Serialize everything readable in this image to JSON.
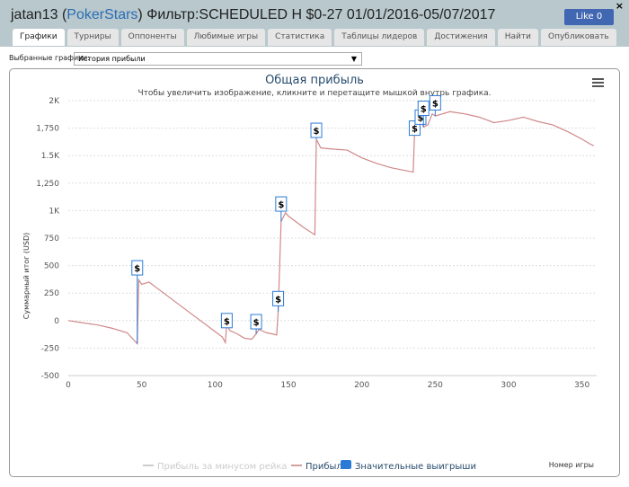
{
  "header": {
    "user": "jatan13",
    "site": "PokerStars",
    "filter": "Фильтр:SCHEDULED H $0-27 01/01/2016-05/07/2017",
    "like": "Like 0",
    "close": "×"
  },
  "tabs": [
    "Графики",
    "Турниры",
    "Оппоненты",
    "Любимые игры",
    "Статистика",
    "Таблицы лидеров",
    "Достижения",
    "Найти",
    "Опубликовать"
  ],
  "selector": {
    "label": "Выбранные графики:",
    "value": "История прибыли",
    "arrow": "▼"
  },
  "menu_icon": "hamburger-icon",
  "chart_data": {
    "type": "line",
    "title": "Общая прибыль",
    "subtitle": "Чтобы увеличить изображение, кликните и перетащите мышкой внутрь графика.",
    "xlabel": "Номер игры",
    "ylabel": "Суммарный итог (USD)",
    "xlim": [
      0,
      360
    ],
    "ylim": [
      -500,
      2000
    ],
    "xticks": [
      0,
      50,
      100,
      150,
      200,
      250,
      300,
      350
    ],
    "yticks": [
      {
        "v": -500,
        "l": "-500"
      },
      {
        "v": -250,
        "l": "-250"
      },
      {
        "v": 0,
        "l": "0"
      },
      {
        "v": 250,
        "l": "250"
      },
      {
        "v": 500,
        "l": "500"
      },
      {
        "v": 750,
        "l": "750"
      },
      {
        "v": 1000,
        "l": "1K"
      },
      {
        "v": 1250,
        "l": "1,250"
      },
      {
        "v": 1500,
        "l": "1.5K"
      },
      {
        "v": 1750,
        "l": "1,750"
      },
      {
        "v": 2000,
        "l": "2K"
      }
    ],
    "grid": true,
    "legend": {
      "position": "bottom",
      "items": [
        {
          "name": "Прибыль за минусом рейка",
          "color": "#cccccc"
        },
        {
          "name": "Прибыль",
          "color": "#d4a0a0"
        },
        {
          "name": "Значительные выигрыши",
          "color": "#2b7bd6"
        }
      ]
    },
    "series": [
      {
        "name": "Прибыль",
        "color": "#d08888",
        "points": [
          [
            0,
            0
          ],
          [
            10,
            -20
          ],
          [
            20,
            -40
          ],
          [
            30,
            -70
          ],
          [
            40,
            -110
          ],
          [
            47,
            -210
          ],
          [
            48,
            370
          ],
          [
            50,
            330
          ],
          [
            55,
            350
          ],
          [
            60,
            300
          ],
          [
            70,
            200
          ],
          [
            80,
            100
          ],
          [
            90,
            0
          ],
          [
            100,
            -100
          ],
          [
            105,
            -150
          ],
          [
            107,
            -200
          ],
          [
            108,
            -30
          ],
          [
            110,
            -90
          ],
          [
            115,
            -120
          ],
          [
            120,
            -160
          ],
          [
            125,
            -170
          ],
          [
            128,
            -120
          ],
          [
            130,
            -80
          ],
          [
            135,
            -110
          ],
          [
            142,
            -130
          ],
          [
            143,
            80
          ],
          [
            145,
            900
          ],
          [
            148,
            980
          ],
          [
            150,
            950
          ],
          [
            160,
            850
          ],
          [
            168,
            780
          ],
          [
            169,
            1650
          ],
          [
            172,
            1570
          ],
          [
            180,
            1560
          ],
          [
            190,
            1550
          ],
          [
            200,
            1480
          ],
          [
            210,
            1430
          ],
          [
            220,
            1390
          ],
          [
            235,
            1350
          ],
          [
            236,
            1730
          ],
          [
            238,
            1690
          ],
          [
            240,
            1840
          ],
          [
            242,
            1760
          ],
          [
            245,
            1780
          ],
          [
            248,
            1880
          ],
          [
            250,
            1860
          ],
          [
            260,
            1900
          ],
          [
            270,
            1880
          ],
          [
            280,
            1850
          ],
          [
            290,
            1800
          ],
          [
            300,
            1820
          ],
          [
            310,
            1850
          ],
          [
            320,
            1810
          ],
          [
            330,
            1780
          ],
          [
            340,
            1720
          ],
          [
            350,
            1650
          ],
          [
            355,
            1610
          ],
          [
            358,
            1590
          ]
        ]
      }
    ],
    "markers": {
      "label": "$",
      "points": [
        [
          47,
          480
        ],
        [
          108,
          0
        ],
        [
          128,
          -10
        ],
        [
          143,
          200
        ],
        [
          145,
          1060
        ],
        [
          169,
          1730
        ],
        [
          236,
          1750
        ],
        [
          240,
          1850
        ],
        [
          242,
          1930
        ],
        [
          250,
          1980
        ]
      ]
    }
  }
}
